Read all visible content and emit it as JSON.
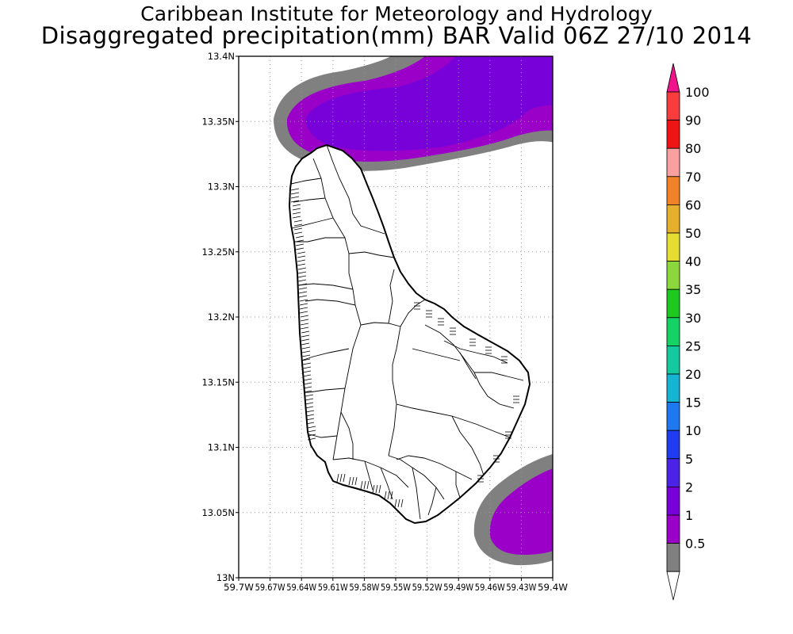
{
  "header": {
    "title": "Caribbean Institute for Meteorology and Hydrology",
    "subtitle": "Disaggregated precipitation(mm) BAR Valid 06Z 27/10 2014"
  },
  "map": {
    "region": "Barbados",
    "lat_range": [
      13.0,
      13.4
    ],
    "lon_range": [
      -59.7,
      -59.4
    ],
    "lat_ticks": [
      "13.4N",
      "13.35N",
      "13.3N",
      "13.25N",
      "13.2N",
      "13.15N",
      "13.1N",
      "13.05N",
      "13N"
    ],
    "lon_ticks": [
      "59.7W",
      "59.67W",
      "59.64W",
      "59.61W",
      "59.58W",
      "59.55W",
      "59.52W",
      "59.49W",
      "59.46W",
      "59.43W",
      "59.4W"
    ],
    "grid": true,
    "grid_style": "dotted"
  },
  "colorbar": {
    "levels": [
      "0.5",
      "1",
      "2",
      "5",
      "10",
      "15",
      "20",
      "25",
      "30",
      "35",
      "40",
      "50",
      "60",
      "70",
      "80",
      "90",
      "100"
    ],
    "colors": [
      "#808080",
      "#9a00c8",
      "#7800d8",
      "#4b23e6",
      "#1f3cf0",
      "#1e78f0",
      "#14b4d2",
      "#14c8a0",
      "#14d264",
      "#1ec81e",
      "#8cd73c",
      "#e6dc32",
      "#e6af2d",
      "#f08228",
      "#faa0a0",
      "#f01414",
      "#fa3c3c"
    ],
    "low_arrow_color": "#ffffff",
    "high_arrow_color": "#f0148c"
  }
}
